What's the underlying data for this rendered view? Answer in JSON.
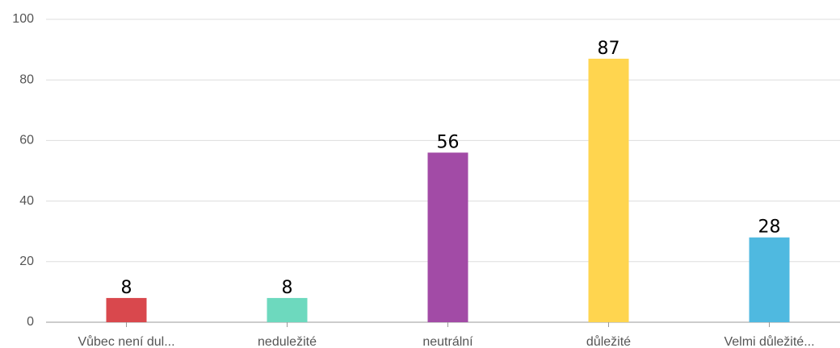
{
  "chart_data": {
    "type": "bar",
    "categories": [
      "Vůbec není dul...",
      "neduležité",
      "neutrální",
      "důležité",
      "Velmi důležité..."
    ],
    "values": [
      8,
      8,
      56,
      87,
      28
    ],
    "colors": [
      "#d9484d",
      "#6dd9be",
      "#a24ba6",
      "#ffd54f",
      "#4fb9e0"
    ],
    "ylim": [
      0,
      100
    ],
    "yticks": [
      0,
      20,
      40,
      60,
      80,
      100
    ],
    "grid": true
  }
}
